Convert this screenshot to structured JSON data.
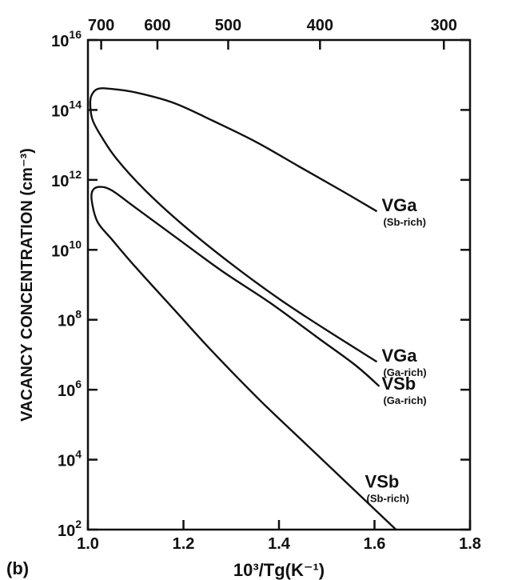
{
  "chart_data": {
    "type": "line",
    "panel_label": "(b)",
    "xlabel": "10³/Tg(K⁻¹)",
    "ylabel": "VACANCY CONCENTRATION (cm⁻³)",
    "xlim": [
      1.0,
      1.8
    ],
    "ylim_log10": [
      2,
      16
    ],
    "y_scale": "log",
    "x_ticks": [
      {
        "value": 1.0,
        "label": "1.0"
      },
      {
        "value": 1.2,
        "label": "1.2"
      },
      {
        "value": 1.4,
        "label": "1.4"
      },
      {
        "value": 1.6,
        "label": "1.6"
      },
      {
        "value": 1.8,
        "label": "1.8"
      }
    ],
    "y_ticks": [
      {
        "exp": 2,
        "base": "10",
        "sup": "2"
      },
      {
        "exp": 4,
        "base": "10",
        "sup": "4"
      },
      {
        "exp": 6,
        "base": "10",
        "sup": "6"
      },
      {
        "exp": 8,
        "base": "10",
        "sup": "8"
      },
      {
        "exp": 10,
        "base": "10",
        "sup": "10"
      },
      {
        "exp": 12,
        "base": "10",
        "sup": "12"
      },
      {
        "exp": 14,
        "base": "10",
        "sup": "14"
      },
      {
        "exp": 16,
        "base": "10",
        "sup": "16"
      }
    ],
    "top_ticks": [
      {
        "value": 700,
        "label": "700"
      },
      {
        "value": 600,
        "label": "600"
      },
      {
        "value": 500,
        "label": "500"
      },
      {
        "value": 400,
        "label": "400"
      },
      {
        "value": 300,
        "label": "300"
      }
    ],
    "series": [
      {
        "name": "VGa",
        "sub": "(Sb-rich)",
        "x": [
          1.605,
          1.5,
          1.4,
          1.3,
          1.2,
          1.12,
          1.06,
          1.03,
          1.01,
          1.005,
          1.007,
          1.02,
          1.05,
          1.1,
          1.18,
          1.26,
          1.35,
          1.44,
          1.53,
          1.605
        ],
        "log_y": [
          6.8,
          7.7,
          8.6,
          9.6,
          10.7,
          11.7,
          12.6,
          13.2,
          13.7,
          14.1,
          14.4,
          14.6,
          14.6,
          14.5,
          14.2,
          13.7,
          13.1,
          12.4,
          11.7,
          11.1
        ]
      },
      {
        "name": "VSb",
        "sub": "(Sb-rich)",
        "x": [
          1.645,
          1.56,
          1.46,
          1.36,
          1.26,
          1.18,
          1.1,
          1.05,
          1.02,
          1.008,
          1.01,
          1.025,
          1.05,
          1.1,
          1.18,
          1.28,
          1.38,
          1.48,
          1.56,
          1.61
        ],
        "log_y": [
          2.0,
          3.1,
          4.4,
          5.7,
          7.1,
          8.3,
          9.5,
          10.3,
          10.8,
          11.4,
          11.7,
          11.8,
          11.7,
          11.2,
          10.4,
          9.4,
          8.5,
          7.5,
          6.7,
          6.1
        ]
      }
    ],
    "curve_labels": [
      {
        "main": "VGa",
        "sub": "(Sb-rich)",
        "x": 1.615,
        "log_y": 11.1
      },
      {
        "main": "VGa",
        "sub": "(Ga-rich)",
        "x": 1.615,
        "log_y": 6.8
      },
      {
        "main": "VSb",
        "sub": "(Ga-rich)",
        "x": 1.615,
        "log_y": 6.0
      },
      {
        "main": "VSb",
        "sub": "(Sb-rich)",
        "x": 1.58,
        "log_y": 3.2
      }
    ]
  }
}
